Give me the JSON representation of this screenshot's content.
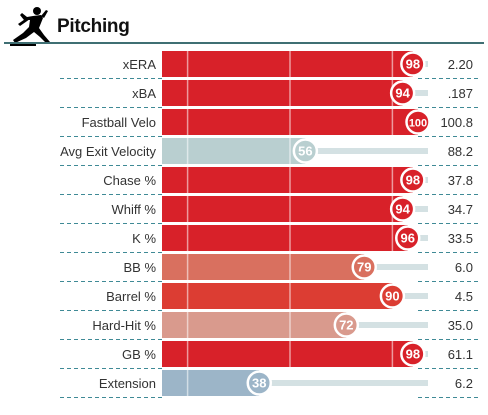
{
  "section": {
    "title": "Pitching",
    "icon": "pitcher-icon",
    "rule_color": "#3f6f73"
  },
  "chart_data": {
    "type": "bar",
    "orientation": "horizontal",
    "title": "Pitching",
    "xlim": [
      0,
      100
    ],
    "value_name": "percentile rank",
    "reference_lines": [
      10,
      50,
      90
    ],
    "grid": false,
    "legend": "none",
    "categories": [
      "xERA",
      "xBA",
      "Fastball Velo",
      "Avg Exit Velocity",
      "Chase %",
      "Whiff %",
      "K %",
      "BB %",
      "Barrel %",
      "Hard-Hit %",
      "GB %",
      "Extension"
    ],
    "values": [
      98,
      94,
      100,
      56,
      98,
      94,
      96,
      79,
      90,
      72,
      98,
      38
    ],
    "stat_values": [
      "2.20",
      ".187",
      "100.8",
      "88.2",
      "37.8",
      "34.7",
      "33.5",
      "6.0",
      "4.5",
      "35.0",
      "61.1",
      "6.2"
    ],
    "bar_colors": [
      "#d82129",
      "#d82129",
      "#d82129",
      "#b9cfd0",
      "#d82129",
      "#d82129",
      "#d82129",
      "#d9705f",
      "#dc3d33",
      "#d99a8d",
      "#d82129",
      "#9cb5c8"
    ],
    "track_color": "#d4e1e3"
  }
}
